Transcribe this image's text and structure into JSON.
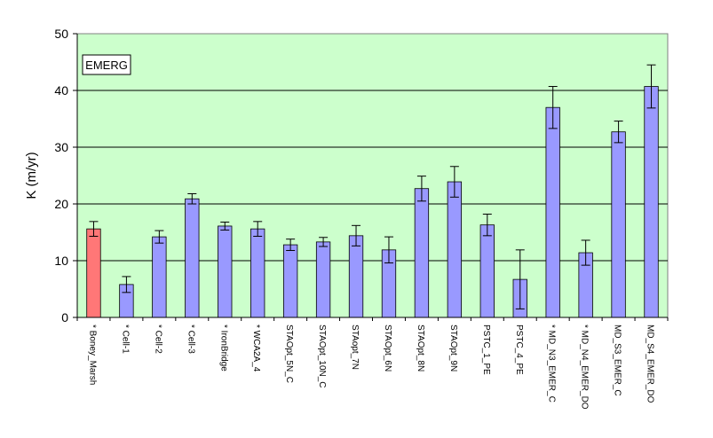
{
  "chart_data": {
    "type": "bar",
    "ylabel": "K (m/yr)",
    "ylim": [
      0,
      50
    ],
    "yticks": [
      0,
      10,
      20,
      30,
      40,
      50
    ],
    "annotation": "EMERG",
    "grid": true,
    "colors": {
      "plot_bg": "#ccffcc",
      "bar": "#9999ff",
      "highlight_bar": "#ff7777",
      "grid": "#000000",
      "error_bar": "#000000"
    },
    "categories": [
      "* Boney_Marsh",
      "* Cell-1",
      "* Cell-2",
      "* Cell-3",
      "* IronBridge",
      "* WCA2A_4",
      "STAOpt_5N_C",
      "STAOpt_10N_C",
      "STAopt_7N",
      "STAOpt_6N",
      "STAOpt_8N",
      "STAOpt_9N",
      "PSTC_1_PE",
      "PSTC_4_PE",
      "* MD_N3_EMER_C",
      "* MD_N4_EMER_DO",
      "MD_S3_EMER_C",
      "MD_S4_EMER_DO"
    ],
    "values": [
      15.6,
      5.8,
      14.2,
      20.9,
      16.1,
      15.6,
      12.8,
      13.3,
      14.4,
      11.9,
      22.7,
      23.9,
      16.3,
      6.7,
      37.0,
      11.4,
      32.7,
      40.7
    ],
    "error": [
      1.3,
      1.4,
      1.1,
      0.9,
      0.7,
      1.3,
      1.0,
      0.8,
      1.8,
      2.3,
      2.2,
      2.7,
      1.9,
      5.2,
      3.7,
      2.2,
      1.9,
      3.8
    ],
    "highlight_index": 0
  }
}
